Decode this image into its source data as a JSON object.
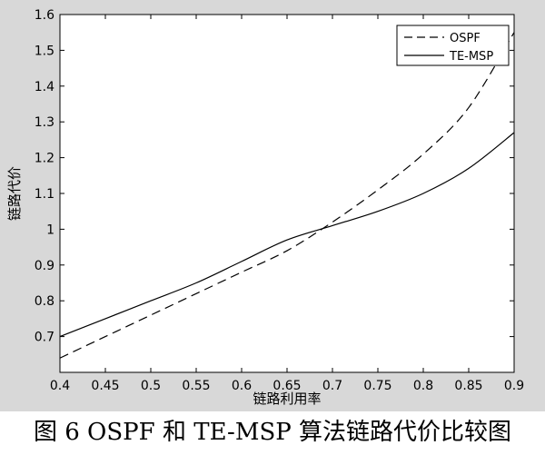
{
  "caption": "图 6   OSPF 和 TE-MSP 算法链路代价比较图",
  "chart_data": {
    "type": "line",
    "title": "",
    "xlabel": "链路利用率",
    "ylabel": "链路代价",
    "xlim": [
      0.4,
      0.9
    ],
    "ylim": [
      0.6,
      1.6
    ],
    "xticks": [
      0.4,
      0.45,
      0.5,
      0.55,
      0.6,
      0.65,
      0.7,
      0.75,
      0.8,
      0.85,
      0.9
    ],
    "xtick_labels": [
      "0.4",
      "0.45",
      "0.5",
      "0.55",
      "0.6",
      "0.65",
      "0.7",
      "0.75",
      "0.8",
      "0.85",
      "0.9"
    ],
    "yticks": [
      0.7,
      0.8,
      0.9,
      1.0,
      1.1,
      1.2,
      1.3,
      1.4,
      1.5,
      1.6
    ],
    "ytick_labels": [
      "0.7",
      "0.8",
      "0.9",
      "1",
      "1.1",
      "1.2",
      "1.3",
      "1.4",
      "1.5",
      "1.6"
    ],
    "grid": false,
    "legend_position": "top-right",
    "series": [
      {
        "name": "OSPF",
        "style": "dashed",
        "color": "#000000",
        "x": [
          0.4,
          0.45,
          0.5,
          0.55,
          0.6,
          0.65,
          0.7,
          0.75,
          0.8,
          0.85,
          0.9
        ],
        "y": [
          0.64,
          0.7,
          0.76,
          0.82,
          0.88,
          0.94,
          1.02,
          1.11,
          1.21,
          1.34,
          1.55
        ]
      },
      {
        "name": "TE-MSP",
        "style": "solid",
        "color": "#000000",
        "x": [
          0.4,
          0.45,
          0.5,
          0.55,
          0.6,
          0.65,
          0.7,
          0.75,
          0.8,
          0.85,
          0.9
        ],
        "y": [
          0.7,
          0.75,
          0.8,
          0.85,
          0.91,
          0.97,
          1.01,
          1.05,
          1.1,
          1.17,
          1.27
        ]
      }
    ]
  }
}
